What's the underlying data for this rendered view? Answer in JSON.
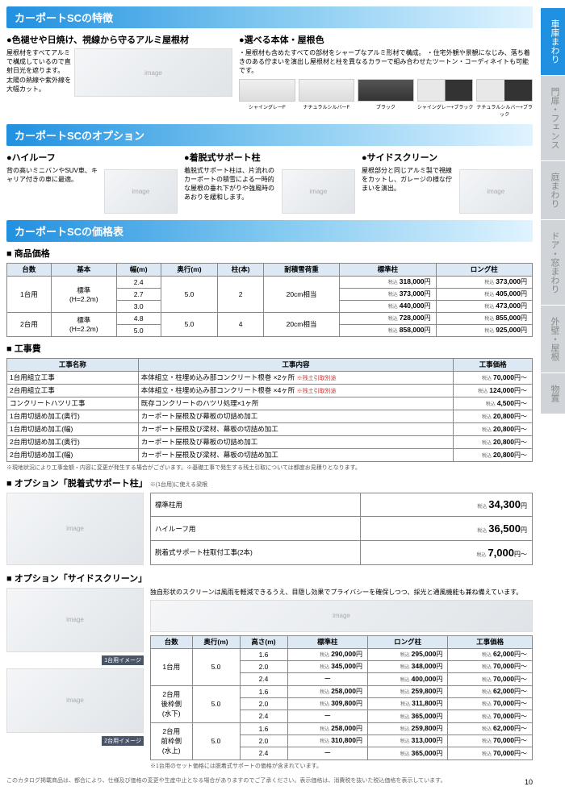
{
  "section1": {
    "title": "カーポートSCの特徴",
    "left": {
      "header": "色褪せや日焼け、視線から守るアルミ屋根材",
      "text": "屋根材をすべてアルミで構成しているので直射日光を遮ります。\n太陽の熱線や紫外線を大幅カット。"
    },
    "right": {
      "header": "選べる本体・屋根色",
      "text": "・屋根材も含めたすべての部材をシャープなアルミ形材で構成。\n・住宅外観や景観になじみ、落ち着きのある佇まいを演出し屋根材と柱を異なるカラーで組み合わせたツートン・コーディネイトも可能です。",
      "colors": [
        "シャイングレーF",
        "ナチュラルシルバーF",
        "ブラック",
        "シャイングレー+ブラック",
        "ナチュラルシルバー+ブラック"
      ]
    }
  },
  "section2": {
    "title": "カーポートSCのオプション",
    "opts": [
      {
        "h": "ハイルーフ",
        "t": "背の高いミニバンやSUV車、キャリア付きの車に最適。"
      },
      {
        "h": "着脱式サポート柱",
        "t": "着脱式サポート柱は、片流れのカーポートの積雪による一時的な屋根の垂れ下がりや強風時のあおりを緩和します。"
      },
      {
        "h": "サイドスクリーン",
        "t": "屋根部分と同じアルミ製で視線をカットし、ガレージの様な佇まいを演出。"
      }
    ]
  },
  "section3": {
    "title": "カーポートSCの価格表"
  },
  "priceTable": {
    "title": "商品価格",
    "headers": [
      "台数",
      "基本",
      "幅(m)",
      "奥行(m)",
      "柱(本)",
      "耐積雪荷重",
      "標準柱",
      "ロング柱"
    ],
    "rows": [
      {
        "a": "1台用",
        "b": "標準\n(H=2.2m)",
        "c": "2.4",
        "d": "5.0",
        "e": "2",
        "f": "20cm相当",
        "p1": "318,000",
        "p2": "373,000"
      },
      {
        "c": "2.7",
        "p1": "373,000",
        "p2": "405,000"
      },
      {
        "c": "3.0",
        "p1": "440,000",
        "p2": "473,000"
      },
      {
        "a": "2台用",
        "b": "標準\n(H=2.2m)",
        "c": "4.8",
        "d": "5.0",
        "e": "4",
        "f": "20cm相当",
        "p1": "728,000",
        "p2": "855,000"
      },
      {
        "c": "5.0",
        "p1": "858,000",
        "p2": "925,000"
      }
    ]
  },
  "constTable": {
    "title": "工事費",
    "headers": [
      "工事名称",
      "工事内容",
      "工事価格"
    ],
    "rows": [
      [
        "1台用組立工事",
        "本体組立・柱埋め込み部コンクリート根巻 ×2ヶ所 ※残土引取別途",
        "70,000円〜"
      ],
      [
        "2台用組立工事",
        "本体組立・柱埋め込み部コンクリート根巻 ×4ヶ所 ※残土引取別途",
        "124,000円〜"
      ],
      [
        "コンクリートハツリ工事",
        "既存コンクリートのハツリ処理×1ヶ所",
        "4,500円〜"
      ],
      [
        "1台用切詰め加工(奥行)",
        "カーポート屋根及び幕板の切詰め加工",
        "20,800円〜"
      ],
      [
        "1台用切詰め加工(幅)",
        "カーポート屋根及び梁材、幕板の切詰め加工",
        "20,800円〜"
      ],
      [
        "2台用切詰め加工(奥行)",
        "カーポート屋根及び幕板の切詰め加工",
        "20,800円〜"
      ],
      [
        "2台用切詰め加工(幅)",
        "カーポート屋根及び梁材、幕板の切詰め加工",
        "20,800円〜"
      ]
    ],
    "note": "※現地状況により工事金額・内容に変更が発生する場合がございます。※基礎工事で発生する残土引取については都度お見積りとなります。"
  },
  "optSupport": {
    "title": "オプション「脱着式サポート柱」",
    "note": "※(1台用)に使える梁根",
    "rows": [
      [
        "標準柱用",
        "34,300"
      ],
      [
        "ハイルーフ用",
        "36,500"
      ],
      [
        "脱着式サポート柱取付工事(2本)",
        "7,000円〜"
      ]
    ]
  },
  "optScreen": {
    "title": "オプション「サイドスクリーン」",
    "desc": "独自形状のスクリーンは風雨を軽減できるうえ、目隠し効果でプライバシーを確保しつつ、採光と通風機能も兼ね備えています。",
    "headers": [
      "台数",
      "奥行(m)",
      "高さ(m)",
      "標準柱",
      "ロング柱",
      "工事価格"
    ],
    "groups": [
      {
        "a": "1台用",
        "d": "5.0",
        "rows": [
          {
            "h": "1.6",
            "p1": "290,000",
            "p2": "295,000",
            "w": "62,000"
          },
          {
            "h": "2.0",
            "p1": "345,000",
            "p2": "348,000",
            "w": "70,000"
          },
          {
            "h": "2.4",
            "p1": "ー",
            "p2": "400,000",
            "w": "70,000"
          }
        ]
      },
      {
        "a": "2台用\n後枠側\n(水下)",
        "d": "5.0",
        "rows": [
          {
            "h": "1.6",
            "p1": "258,000",
            "p2": "259,800",
            "w": "62,000"
          },
          {
            "h": "2.0",
            "p1": "309,800",
            "p2": "311,800",
            "w": "70,000"
          },
          {
            "h": "2.4",
            "p1": "ー",
            "p2": "365,000",
            "w": "70,000"
          }
        ]
      },
      {
        "a": "2台用\n前枠側\n(水上)",
        "d": "5.0",
        "rows": [
          {
            "h": "1.6",
            "p1": "258,000",
            "p2": "259,800",
            "w": "62,000"
          },
          {
            "h": "2.0",
            "p1": "310,800",
            "p2": "313,000",
            "w": "70,000"
          },
          {
            "h": "2.4",
            "p1": "ー",
            "p2": "365,000",
            "w": "70,000"
          }
        ]
      }
    ],
    "note": "※1台用のセット価格には脱着式サポートの価格が含まれています。",
    "cap1": "1台用イメージ",
    "cap2": "2台用イメージ"
  },
  "tabs": [
    "車庫まわり",
    "門扉・フェンス",
    "庭まわり",
    "ドア・窓まわり",
    "外壁・屋根",
    "物置"
  ],
  "footer": "このカタログ掲載商品は、都合により、仕様及び価格の変更や生産中止となる場合がありますのでご了承ください。表示価格は、消費税を抜いた税込価格を表示しています。",
  "pageNum": "10",
  "pricePrefix": "税込"
}
